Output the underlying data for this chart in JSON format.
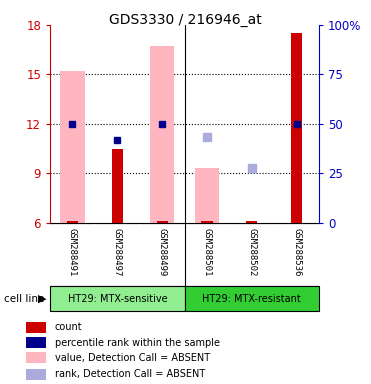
{
  "title": "GDS3330 / 216946_at",
  "samples": [
    "GSM288491",
    "GSM288497",
    "GSM288499",
    "GSM288501",
    "GSM288502",
    "GSM288536"
  ],
  "ylim_left": [
    6,
    18
  ],
  "ylim_right": [
    0,
    100
  ],
  "yticks_left": [
    6,
    9,
    12,
    15,
    18
  ],
  "yticks_right": [
    0,
    25,
    50,
    75,
    100
  ],
  "yticklabels_right": [
    "0",
    "25",
    "50",
    "75",
    "100%"
  ],
  "count_values": [
    6.1,
    10.5,
    6.1,
    6.1,
    6.1,
    17.5
  ],
  "rank_values": [
    12.0,
    11.0,
    12.0,
    null,
    null,
    12.0
  ],
  "value_absent": [
    15.2,
    null,
    16.7,
    9.3,
    null,
    null
  ],
  "rank_absent": [
    null,
    null,
    null,
    11.2,
    9.3,
    null
  ],
  "group1_label": "HT29: MTX-sensitive",
  "group2_label": "HT29: MTX-resistant",
  "group1_color": "#90EE90",
  "group2_color": "#32CD32",
  "cell_line_label": "cell line",
  "count_color": "#CC0000",
  "rank_color": "#00008B",
  "value_absent_color": "#FFB6C1",
  "rank_absent_color": "#AAAADD",
  "left_axis_color": "#CC0000",
  "right_axis_color": "#0000CC",
  "bg_label_color": "#C8C8C8",
  "legend_labels": [
    "count",
    "percentile rank within the sample",
    "value, Detection Call = ABSENT",
    "rank, Detection Call = ABSENT"
  ],
  "legend_colors": [
    "#CC0000",
    "#00008B",
    "#FFB6C1",
    "#AAAADD"
  ]
}
